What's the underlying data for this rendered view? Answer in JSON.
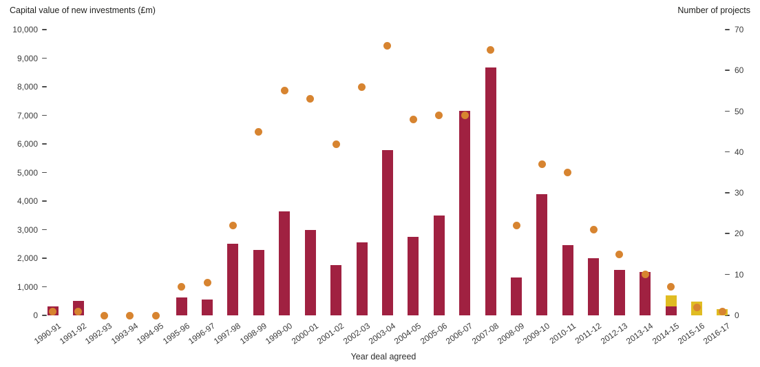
{
  "titles": {
    "left_axis": "Capital value of new investments (£m)",
    "right_axis": "Number of projects",
    "x_axis": "Year deal agreed"
  },
  "colors": {
    "bar_main": "#A02141",
    "bar_secondary": "#E0BC22",
    "dot": "#D78430",
    "text": "#3a3a3a"
  },
  "chart_data": {
    "type": "bar",
    "title": "",
    "xlabel": "Year deal agreed",
    "left_ylabel": "Capital value of new investments (£m)",
    "right_ylabel": "Number of projects",
    "left_axis": {
      "min": 0,
      "max": 10000,
      "step": 1000
    },
    "right_axis": {
      "min": 0,
      "max": 70,
      "step": 10
    },
    "grid": false,
    "legend": "none",
    "categories": [
      "1990-91",
      "1991-92",
      "1992-93",
      "1993-94",
      "1994-95",
      "1995-96",
      "1996-97",
      "1997-98",
      "1998-99",
      "1999-00",
      "2000-01",
      "2001-02",
      "2002-03",
      "2003-04",
      "2004-05",
      "2005-06",
      "2006-07",
      "2007-08",
      "2008-09",
      "2009-10",
      "2010-11",
      "2011-12",
      "2012-13",
      "2013-14",
      "2014-15",
      "2015-16",
      "2016-17"
    ],
    "series": [
      {
        "name": "capital-value-dark-red-bars",
        "type": "bar",
        "axis": "left",
        "color_key": "bar_main",
        "values": [
          310,
          510,
          0,
          0,
          0,
          630,
          560,
          2510,
          2280,
          3640,
          2990,
          1760,
          2560,
          5790,
          2740,
          3490,
          7160,
          8680,
          1320,
          4230,
          2460,
          2000,
          1600,
          1510,
          310,
          0,
          0
        ]
      },
      {
        "name": "capital-value-yellow-bars",
        "type": "bar-stacked-on-top",
        "axis": "left",
        "color_key": "bar_secondary",
        "values": [
          0,
          0,
          0,
          0,
          0,
          0,
          0,
          0,
          0,
          0,
          0,
          0,
          0,
          0,
          0,
          0,
          0,
          0,
          0,
          0,
          0,
          0,
          0,
          0,
          380,
          490,
          210
        ]
      },
      {
        "name": "number-of-projects-dots",
        "type": "scatter",
        "axis": "right",
        "color_key": "dot",
        "values": [
          1,
          1,
          0,
          0,
          0,
          7,
          8,
          22,
          45,
          55,
          53,
          42,
          56,
          66,
          48,
          49,
          49,
          65,
          22,
          37,
          35,
          21,
          15,
          10,
          7,
          2,
          1
        ]
      }
    ]
  }
}
